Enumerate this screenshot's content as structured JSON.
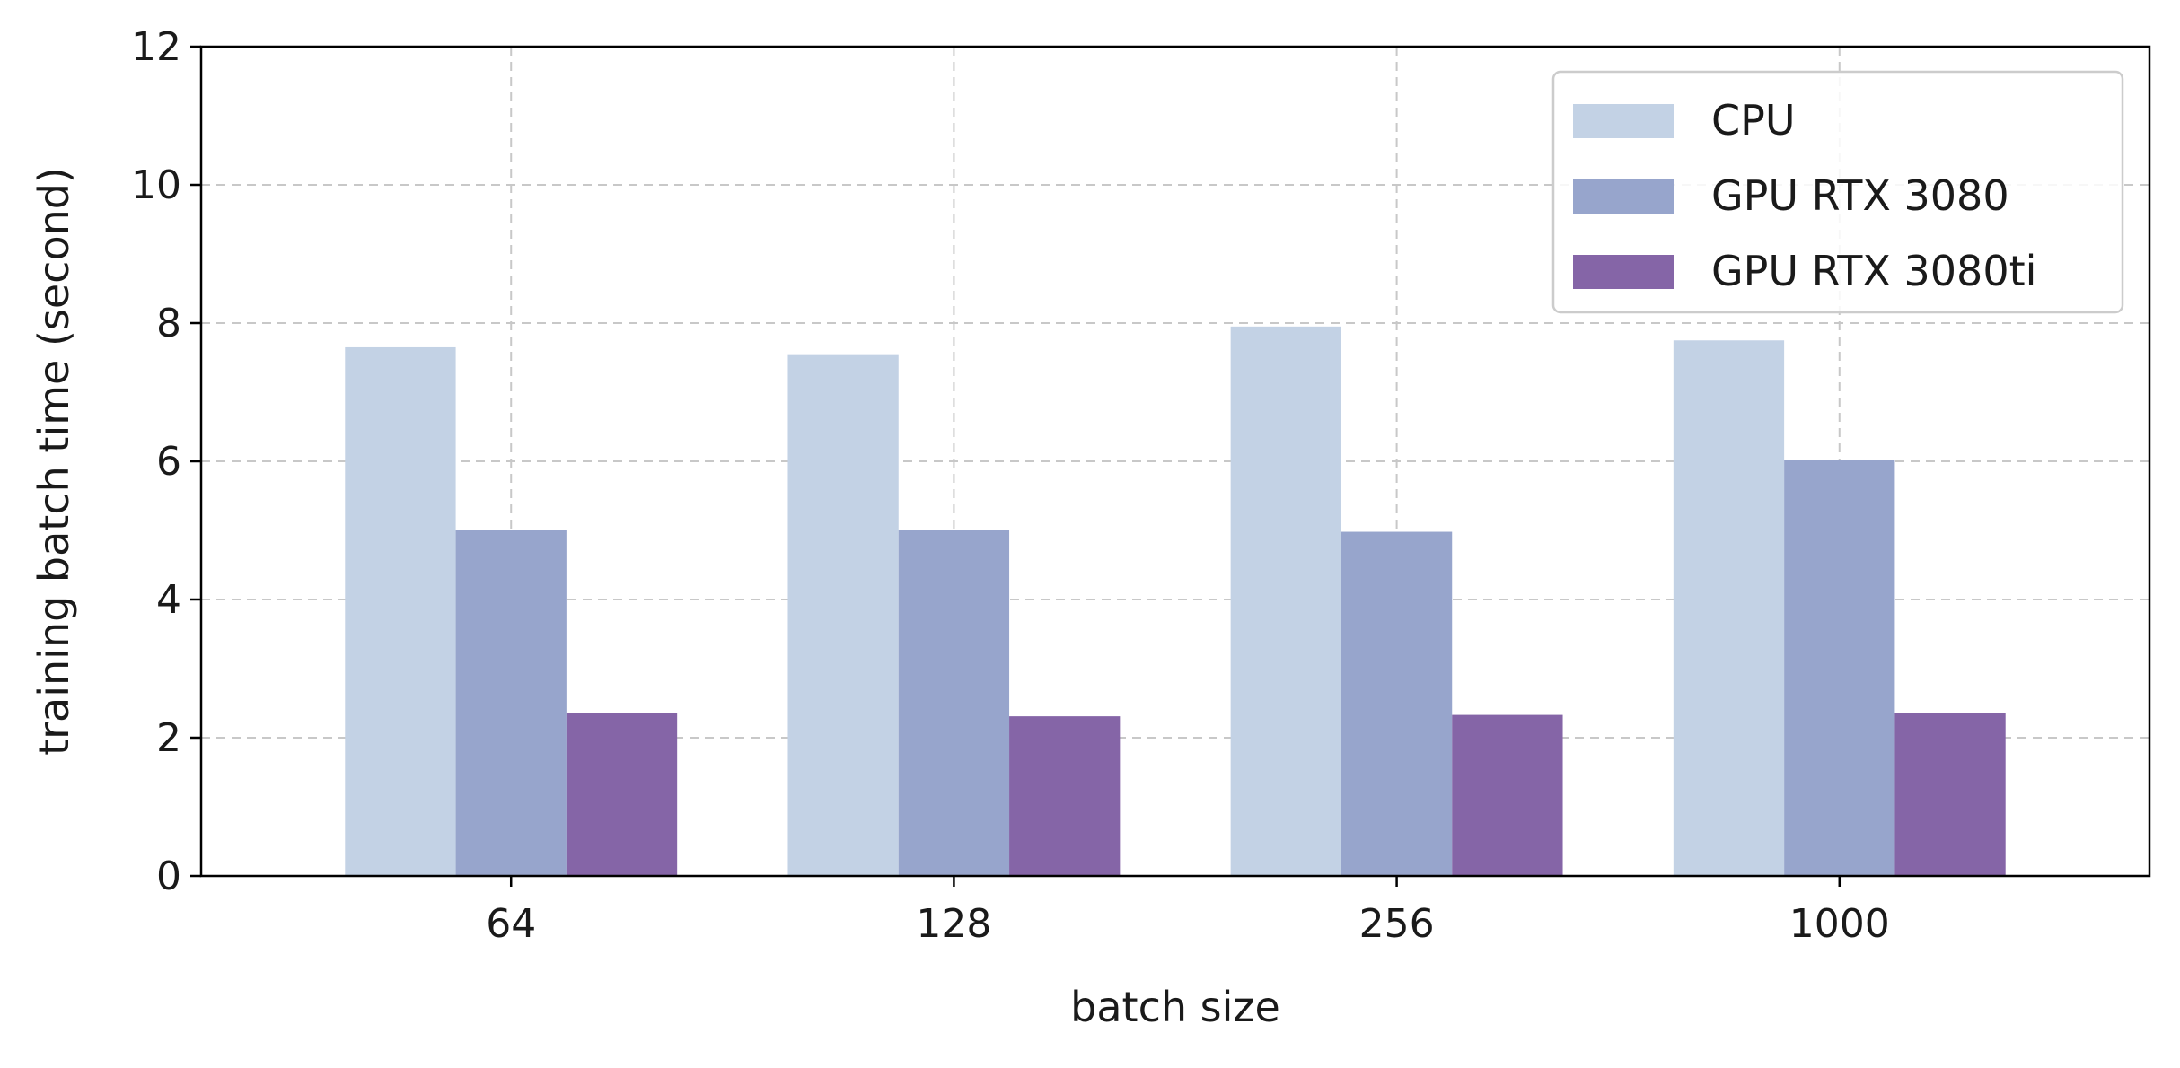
{
  "chart_data": {
    "type": "bar",
    "xlabel": "batch size",
    "ylabel": "training batch time (second)",
    "categories": [
      "64",
      "128",
      "256",
      "1000"
    ],
    "ylim": [
      0,
      12
    ],
    "yticks": [
      0,
      2,
      4,
      6,
      8,
      10,
      12
    ],
    "grid": true,
    "legend_position": "top-right",
    "series": [
      {
        "name": "CPU",
        "color": "#c3d2e5",
        "values": [
          7.65,
          7.55,
          7.95,
          7.75
        ]
      },
      {
        "name": "GPU RTX 3080",
        "color": "#97a5cc",
        "values": [
          5.0,
          5.0,
          4.98,
          6.02
        ]
      },
      {
        "name": "GPU RTX 3080ti",
        "color": "#8565a7",
        "values": [
          2.36,
          2.31,
          2.33,
          2.36
        ]
      }
    ]
  }
}
